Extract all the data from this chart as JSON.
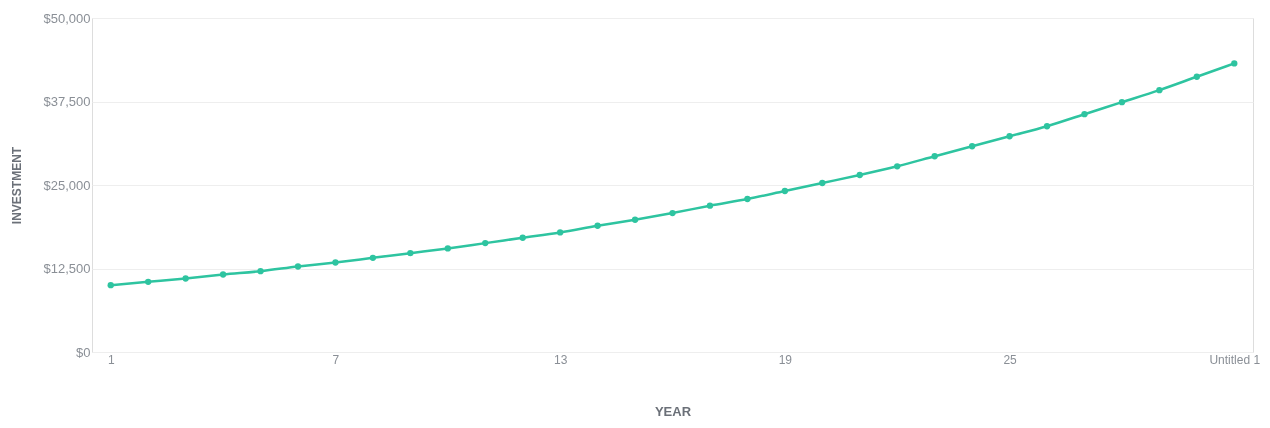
{
  "chart_data": {
    "type": "line",
    "xlabel": "YEAR",
    "ylabel": "INVESTMENT",
    "categories": [
      "1",
      null,
      null,
      null,
      null,
      null,
      "7",
      null,
      null,
      null,
      null,
      null,
      "13",
      null,
      null,
      null,
      null,
      null,
      "19",
      null,
      null,
      null,
      null,
      null,
      "25",
      null,
      null,
      null,
      null,
      null,
      "Untitled 1"
    ],
    "series": [
      {
        "color": "#2ec4a0",
        "values": [
          10000,
          10500,
          11000,
          11600,
          12100,
          12800,
          13400,
          14100,
          14800,
          15500,
          16300,
          17100,
          17900,
          18900,
          19800,
          20800,
          21900,
          22900,
          24100,
          25300,
          26500,
          27800,
          29300,
          30800,
          32300,
          33800,
          35600,
          37400,
          39200,
          41200,
          43200
        ]
      }
    ],
    "ylim": [
      0,
      50000
    ],
    "yticks": [
      {
        "value": 0,
        "label": "$0"
      },
      {
        "value": 12500,
        "label": "$12,500"
      },
      {
        "value": 25000,
        "label": "$25,000"
      },
      {
        "value": 37500,
        "label": "$37,500"
      },
      {
        "value": 50000,
        "label": "$50,000"
      }
    ],
    "grid": "y",
    "marker": "circle",
    "line_style": "solid"
  }
}
